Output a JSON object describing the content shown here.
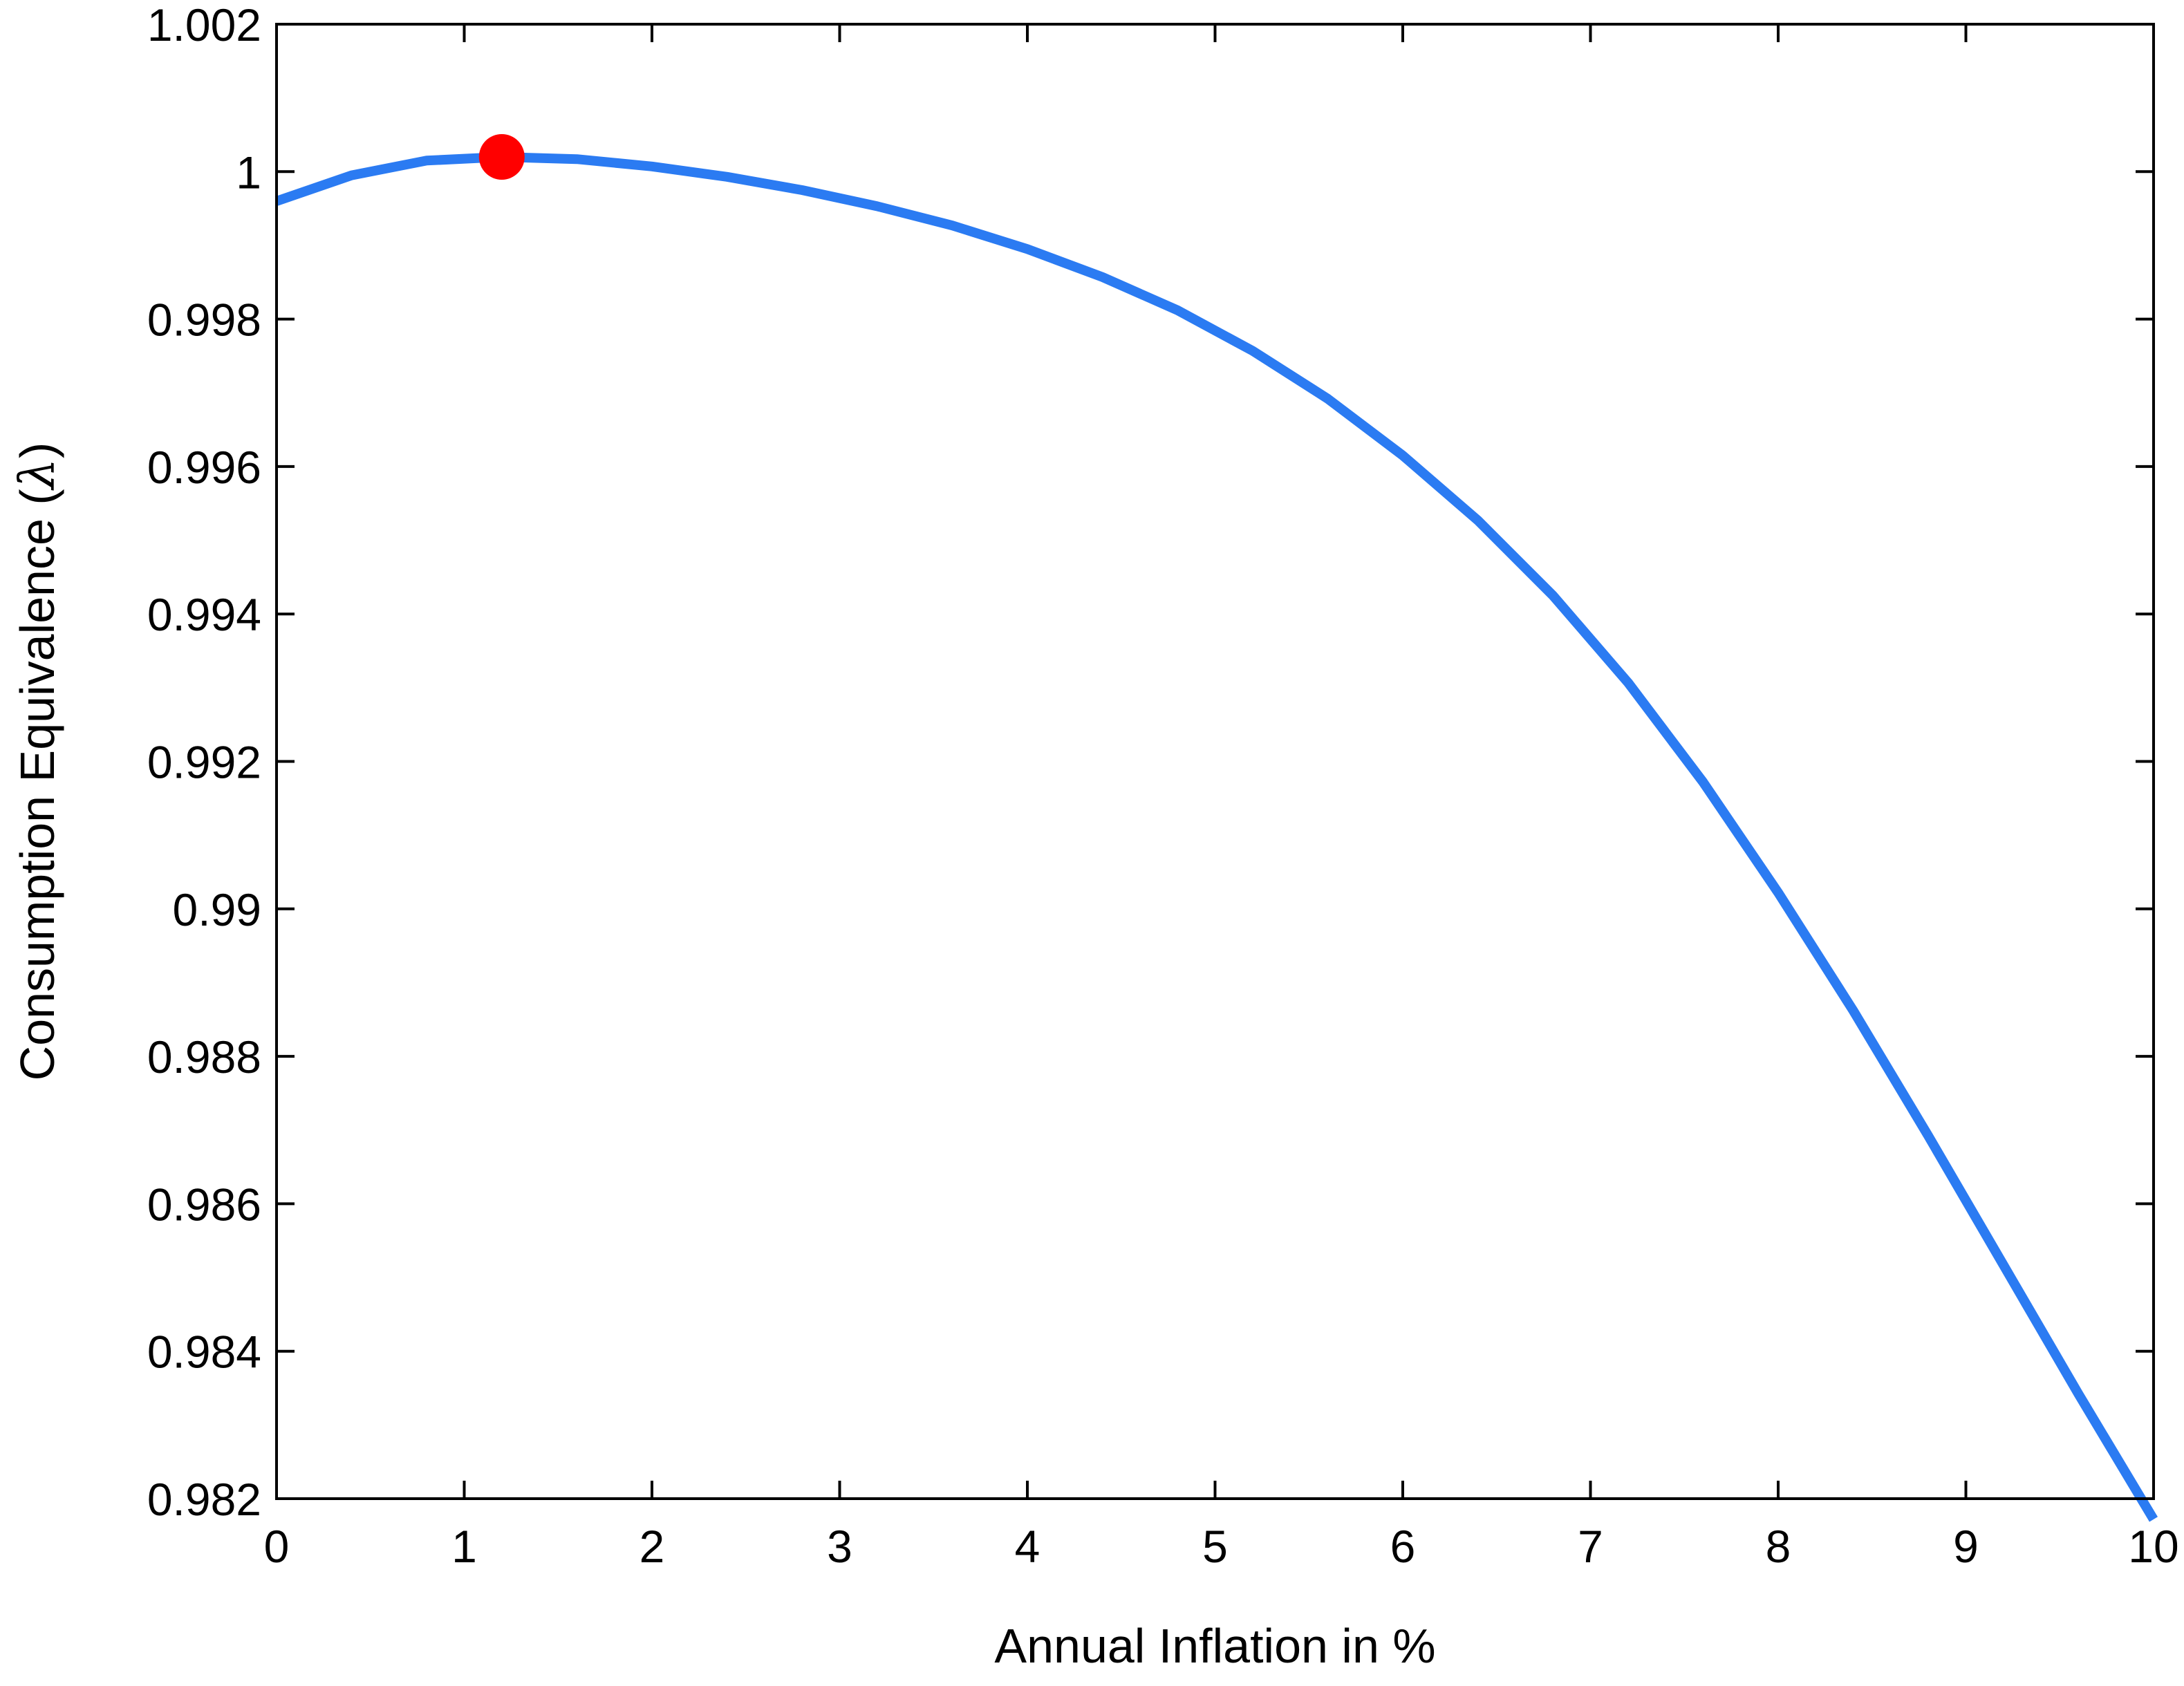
{
  "chart_data": {
    "type": "line",
    "title": "",
    "xlabel": "Annual Inflation in %",
    "ylabel_text": "Consumption Equivalence (",
    "ylabel_symbol": "λ",
    "ylabel_close": ")",
    "xlim": [
      0,
      10
    ],
    "ylim": [
      0.982,
      1.002
    ],
    "xticks": [
      0,
      1,
      2,
      3,
      4,
      5,
      6,
      7,
      8,
      9,
      10
    ],
    "xtick_labels": [
      "0",
      "1",
      "2",
      "3",
      "4",
      "5",
      "6",
      "7",
      "8",
      "9",
      "10"
    ],
    "yticks": [
      0.982,
      0.984,
      0.986,
      0.988,
      0.99,
      0.992,
      0.994,
      0.996,
      0.998,
      1.0,
      1.002
    ],
    "ytick_labels": [
      "0.982",
      "0.984",
      "0.986",
      "0.988",
      "0.99",
      "0.992",
      "0.994",
      "0.996",
      "0.998",
      "1",
      "1.002"
    ],
    "grid": false,
    "series": [
      {
        "color": "#2b7bf2",
        "x": [
          0,
          0.4,
          0.8,
          1.2,
          1.6,
          2.0,
          2.4,
          2.8,
          3.2,
          3.6,
          4.0,
          4.4,
          4.8,
          5.2,
          5.6,
          6.0,
          6.4,
          6.8,
          7.2,
          7.6,
          8.0,
          8.4,
          8.8,
          9.2,
          9.6,
          10.0
        ],
        "y": [
          0.9996,
          0.99995,
          1.00015,
          1.0002,
          1.00017,
          1.00007,
          0.99993,
          0.99975,
          0.99953,
          0.99927,
          0.99895,
          0.99857,
          0.99812,
          0.99757,
          0.99692,
          0.99615,
          0.99527,
          0.99425,
          0.99307,
          0.99172,
          0.99022,
          0.98862,
          0.98692,
          0.98517,
          0.98342,
          0.98172
        ]
      }
    ],
    "highlight_point": {
      "x": 1.2,
      "y": 1.0002,
      "color": "#ff0000"
    }
  }
}
